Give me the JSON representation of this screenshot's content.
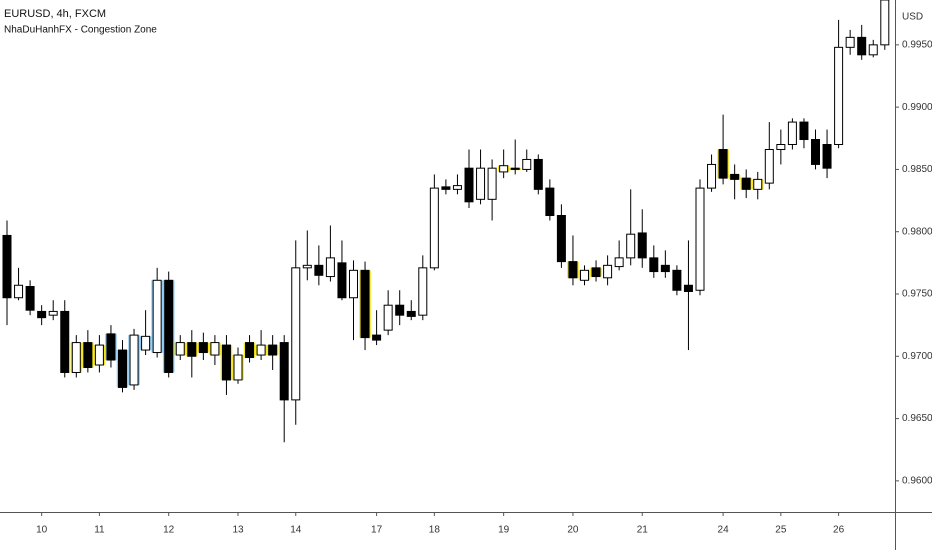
{
  "chart_data": {
    "type": "candlestick",
    "title": "EURUSD, 4h, FXCM",
    "subtitle": "NhaDuHanhFX - Congestion Zone",
    "y_axis_label": "USD",
    "categories": [
      null,
      null,
      null,
      "10",
      null,
      null,
      null,
      null,
      "11",
      null,
      null,
      null,
      null,
      null,
      "12",
      null,
      null,
      null,
      null,
      null,
      "13",
      null,
      null,
      null,
      null,
      "14",
      null,
      null,
      null,
      null,
      null,
      null,
      "17",
      null,
      null,
      null,
      null,
      "18",
      null,
      null,
      null,
      null,
      null,
      "19",
      null,
      null,
      null,
      null,
      null,
      "20",
      null,
      null,
      null,
      null,
      null,
      "21",
      null,
      null,
      null,
      null,
      null,
      null,
      "24",
      null,
      null,
      null,
      null,
      "25",
      null,
      null,
      null,
      null,
      "26",
      null,
      null,
      null,
      null
    ],
    "open": [
      0.9797,
      0.9747,
      0.9756,
      0.9736,
      0.9733,
      0.9736,
      0.9687,
      0.9711,
      0.9693,
      0.9718,
      0.9705,
      0.9677,
      0.9705,
      0.9703,
      0.9761,
      0.9701,
      0.9711,
      0.9711,
      0.9701,
      0.9709,
      0.9681,
      0.9711,
      0.9701,
      0.9709,
      0.9711,
      0.9665,
      0.9771,
      0.9773,
      0.9764,
      0.9775,
      0.9747,
      0.9769,
      0.9717,
      0.9721,
      0.9741,
      0.9736,
      0.9733,
      0.9771,
      0.9836,
      0.9834,
      0.9851,
      0.9826,
      0.9826,
      0.9848,
      0.9851,
      0.985,
      0.9858,
      0.9835,
      0.9813,
      0.9776,
      0.9761,
      0.9771,
      0.9763,
      0.9772,
      0.9779,
      0.9799,
      0.9779,
      0.9773,
      0.9769,
      0.9757,
      0.9753,
      0.9835,
      0.9866,
      0.9846,
      0.9843,
      0.9834,
      0.9839,
      0.9866,
      0.987,
      0.9888,
      0.9874,
      0.987,
      0.987,
      0.9948,
      0.9956,
      0.9942,
      0.995
    ],
    "high": [
      0.9809,
      0.9771,
      0.9761,
      0.9741,
      0.9745,
      0.9745,
      0.9717,
      0.9721,
      0.9717,
      0.9725,
      0.9713,
      0.9722,
      0.9737,
      0.9771,
      0.9768,
      0.9717,
      0.9721,
      0.9719,
      0.9717,
      0.9717,
      0.9707,
      0.9717,
      0.9721,
      0.9717,
      0.9717,
      0.9793,
      0.9801,
      0.9789,
      0.9805,
      0.9793,
      0.9777,
      0.9776,
      0.9737,
      0.9753,
      0.9753,
      0.9745,
      0.9781,
      0.9846,
      0.9842,
      0.9846,
      0.9866,
      0.9866,
      0.9858,
      0.9866,
      0.9874,
      0.9866,
      0.9862,
      0.9842,
      0.9822,
      0.9797,
      0.9773,
      0.9777,
      0.9781,
      0.9793,
      0.9834,
      0.9818,
      0.9789,
      0.9785,
      0.9773,
      0.9793,
      0.9842,
      0.9862,
      0.9894,
      0.9854,
      0.985,
      0.9848,
      0.9888,
      0.9882,
      0.9891,
      0.9891,
      0.9882,
      0.9882,
      0.997,
      0.9962,
      0.9966,
      0.9954,
      0.9986
    ],
    "low": [
      0.9725,
      0.9745,
      0.9733,
      0.9725,
      0.9729,
      0.9683,
      0.9683,
      0.9687,
      0.9687,
      0.9691,
      0.9671,
      0.9673,
      0.9701,
      0.9699,
      0.9683,
      0.9697,
      0.9683,
      0.9697,
      0.9693,
      0.9669,
      0.9678,
      0.9695,
      0.9697,
      0.9689,
      0.9631,
      0.9645,
      0.9761,
      0.9757,
      0.976,
      0.9745,
      0.9713,
      0.9705,
      0.9709,
      0.9717,
      0.9725,
      0.9729,
      0.9729,
      0.9769,
      0.983,
      0.983,
      0.9819,
      0.9822,
      0.9809,
      0.9843,
      0.9846,
      0.9848,
      0.983,
      0.9809,
      0.9771,
      0.9757,
      0.9757,
      0.976,
      0.9757,
      0.9769,
      0.9773,
      0.9771,
      0.9763,
      0.9763,
      0.9749,
      0.9705,
      0.9749,
      0.9832,
      0.9838,
      0.9826,
      0.9827,
      0.9826,
      0.9834,
      0.9854,
      0.9866,
      0.9867,
      0.985,
      0.9843,
      0.9867,
      0.9942,
      0.9938,
      0.994,
      0.9946
    ],
    "close": [
      0.9747,
      0.9757,
      0.9737,
      0.9731,
      0.9736,
      0.9687,
      0.9711,
      0.9691,
      0.9709,
      0.9697,
      0.9675,
      0.9717,
      0.9716,
      0.9761,
      0.9687,
      0.9711,
      0.97,
      0.9703,
      0.9711,
      0.9681,
      0.9701,
      0.9699,
      0.9709,
      0.9701,
      0.9665,
      0.9771,
      0.9773,
      0.9765,
      0.9779,
      0.9747,
      0.9769,
      0.9715,
      0.9713,
      0.9741,
      0.9733,
      0.9732,
      0.9771,
      0.9835,
      0.9834,
      0.9837,
      0.9824,
      0.9851,
      0.9851,
      0.9853,
      0.985,
      0.9858,
      0.9834,
      0.9813,
      0.9776,
      0.9763,
      0.9769,
      0.9764,
      0.9773,
      0.9779,
      0.9798,
      0.9779,
      0.9768,
      0.9768,
      0.9753,
      0.9752,
      0.9835,
      0.9854,
      0.9843,
      0.9842,
      0.9834,
      0.9842,
      0.9866,
      0.987,
      0.9888,
      0.9874,
      0.9854,
      0.9851,
      0.9948,
      0.9956,
      0.9942,
      0.995,
      0.9986
    ],
    "highlight": [
      null,
      null,
      null,
      null,
      null,
      null,
      "#f5e31b",
      "#f5e31b",
      "#f5e31b",
      "#8ec9f2",
      "#8ec9f2",
      "#8ec9f2",
      "#8ec9f2",
      "#8ec9f2",
      "#8ec9f2",
      "#f5e31b",
      "#f5e31b",
      "#f5e31b",
      "#f5e31b",
      "#f5e31b",
      "#f5e31b",
      "#f5e31b",
      "#f5e31b",
      "#f5e31b",
      null,
      null,
      null,
      null,
      null,
      null,
      null,
      "#f5e31b",
      null,
      null,
      null,
      null,
      null,
      null,
      null,
      null,
      null,
      null,
      null,
      "#f5e31b",
      "#f5e31b",
      null,
      null,
      null,
      null,
      "#f5e31b",
      "#f5e31b",
      "#f5e31b",
      null,
      null,
      null,
      null,
      null,
      null,
      null,
      null,
      null,
      null,
      "#f5e31b",
      "#f5e31b",
      "#f5e31b",
      "#f5e31b",
      null,
      null,
      null,
      null,
      null,
      null,
      null,
      null,
      null,
      null,
      null
    ],
    "up_color": "#ffffff",
    "down_color": "#000000",
    "ylim": [
      0.9575,
      0.9986
    ],
    "yticks": [
      {
        "value": 0.96,
        "label": "0.96000"
      },
      {
        "value": 0.965,
        "label": "0.96500"
      },
      {
        "value": 0.97,
        "label": "0.97000"
      },
      {
        "value": 0.975,
        "label": "0.97500"
      },
      {
        "value": 0.98,
        "label": "0.98000"
      },
      {
        "value": 0.985,
        "label": "0.98500"
      },
      {
        "value": 0.99,
        "label": "0.99000"
      },
      {
        "value": 0.995,
        "label": "0.99500"
      }
    ]
  }
}
